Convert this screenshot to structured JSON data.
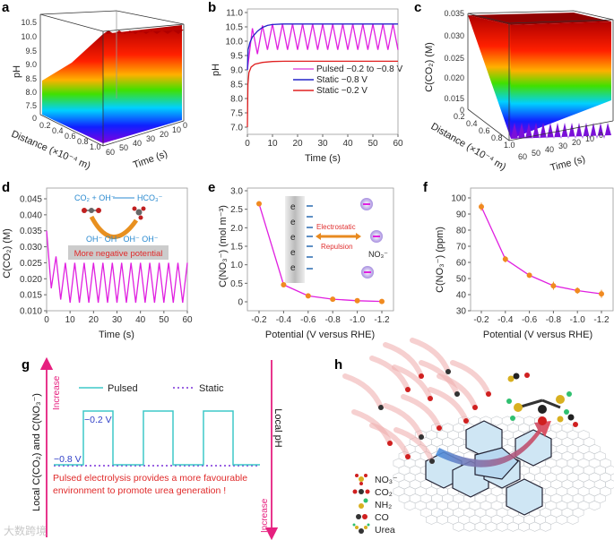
{
  "panel_labels": {
    "a": "a",
    "b": "b",
    "c": "c",
    "d": "d",
    "e": "e",
    "f": "f",
    "g": "g",
    "h": "h"
  },
  "colors": {
    "pulsed": "#e020e0",
    "static_08": "#2424c8",
    "static_02": "#e02020",
    "marker": "#f08a20",
    "pink": "#e6207f",
    "cyan": "#3ec8c8",
    "violet": "#7a30d8",
    "red_text": "#e02a2a",
    "blue_text": "#3040c8"
  },
  "chart_data": [
    {
      "id": "a",
      "type": "surface3d",
      "zlabel": "pH",
      "xlabel": "Distance (×10⁻⁴ m)",
      "ylabel": "Time (s)",
      "z_ticks": [
        "10.5",
        "10.0",
        "9.5",
        "9.0",
        "8.5",
        "8.0",
        "7.5",
        "0"
      ],
      "x_ticks": [
        "0.2",
        "0.4",
        "0.6",
        "0.8",
        "1.0"
      ],
      "y_ticks": [
        "60",
        "50",
        "40",
        "30",
        "20",
        "10",
        "0"
      ],
      "zlim": [
        7.0,
        10.7
      ]
    },
    {
      "id": "b",
      "type": "line",
      "xlabel": "Time (s)",
      "ylabel": "pH",
      "xlim": [
        0,
        60
      ],
      "ylim": [
        7.0,
        11.0
      ],
      "x_ticks": [
        0,
        10,
        20,
        30,
        40,
        50,
        60
      ],
      "y_ticks": [
        "7.0",
        "7.5",
        "8.0",
        "8.5",
        "9.0",
        "9.5",
        "10.0",
        "10.5",
        "11.0"
      ],
      "series": [
        {
          "name": "Pulsed −0.2 to −0.8 V",
          "color_key": "pulsed",
          "points": [
            [
              0,
              9.0
            ],
            [
              2,
              10.45
            ],
            [
              4,
              9.55
            ],
            [
              6,
              10.55
            ],
            [
              8,
              9.7
            ],
            [
              10,
              10.6
            ],
            [
              12,
              9.7
            ],
            [
              14,
              10.6
            ],
            [
              16,
              9.7
            ],
            [
              18,
              10.6
            ],
            [
              20,
              9.7
            ],
            [
              22,
              10.6
            ],
            [
              24,
              9.7
            ],
            [
              26,
              10.6
            ],
            [
              28,
              9.7
            ],
            [
              30,
              10.6
            ],
            [
              32,
              9.7
            ],
            [
              34,
              10.6
            ],
            [
              36,
              9.7
            ],
            [
              38,
              10.6
            ],
            [
              40,
              9.7
            ],
            [
              42,
              10.6
            ],
            [
              44,
              9.7
            ],
            [
              46,
              10.6
            ],
            [
              48,
              9.7
            ],
            [
              50,
              10.6
            ],
            [
              52,
              9.7
            ],
            [
              54,
              10.6
            ],
            [
              56,
              9.7
            ],
            [
              58,
              10.6
            ],
            [
              60,
              9.7
            ]
          ]
        },
        {
          "name": "Static −0.8 V",
          "color_key": "static_08",
          "points": [
            [
              0,
              9.0
            ],
            [
              0.3,
              9.7
            ],
            [
              1,
              9.95
            ],
            [
              2,
              10.15
            ],
            [
              4,
              10.35
            ],
            [
              6,
              10.48
            ],
            [
              8,
              10.55
            ],
            [
              10,
              10.58
            ],
            [
              14,
              10.6
            ],
            [
              60,
              10.6
            ]
          ]
        },
        {
          "name": "Static −0.2 V",
          "color_key": "static_02",
          "points": [
            [
              0,
              7.0
            ],
            [
              0.2,
              8.5
            ],
            [
              0.6,
              8.9
            ],
            [
              1.5,
              9.1
            ],
            [
              3,
              9.2
            ],
            [
              6,
              9.26
            ],
            [
              10,
              9.29
            ],
            [
              15,
              9.3
            ],
            [
              60,
              9.3
            ]
          ]
        }
      ],
      "legend": "center-right"
    },
    {
      "id": "c",
      "type": "surface3d",
      "zlabel": "C(CO₂) (M)",
      "xlabel": "Distance (×10⁻⁴ m)",
      "ylabel": "Time (s)",
      "z_ticks": [
        "0.035",
        "0.030",
        "0.025",
        "0.020",
        "0.015",
        "0"
      ],
      "x_ticks": [
        "0.2",
        "0.4",
        "0.6",
        "0.8",
        "1.0"
      ],
      "y_ticks": [
        "60",
        "50",
        "40",
        "30",
        "20",
        "10",
        "0"
      ],
      "zlim": [
        0.01,
        0.035
      ]
    },
    {
      "id": "d",
      "type": "line",
      "xlabel": "Time (s)",
      "ylabel": "C(CO₂) (M)",
      "xlim": [
        0,
        60
      ],
      "ylim": [
        0.01,
        0.045
      ],
      "x_ticks": [
        0,
        10,
        20,
        30,
        40,
        50,
        60
      ],
      "y_ticks": [
        "0.010",
        "0.015",
        "0.020",
        "0.025",
        "0.030",
        "0.035",
        "0.040",
        "0.045"
      ],
      "series": [
        {
          "name": "Pulsed",
          "color_key": "pulsed",
          "points": [
            [
              0,
              0.035
            ],
            [
              2,
              0.017
            ],
            [
              4,
              0.027
            ],
            [
              6,
              0.0135
            ],
            [
              8,
              0.025
            ],
            [
              10,
              0.0125
            ],
            [
              12,
              0.025
            ],
            [
              14,
              0.0125
            ],
            [
              16,
              0.025
            ],
            [
              18,
              0.0125
            ],
            [
              20,
              0.025
            ],
            [
              22,
              0.0125
            ],
            [
              24,
              0.025
            ],
            [
              26,
              0.0125
            ],
            [
              28,
              0.025
            ],
            [
              30,
              0.0125
            ],
            [
              32,
              0.025
            ],
            [
              34,
              0.0125
            ],
            [
              36,
              0.025
            ],
            [
              38,
              0.0125
            ],
            [
              40,
              0.025
            ],
            [
              42,
              0.0125
            ],
            [
              44,
              0.025
            ],
            [
              46,
              0.0125
            ],
            [
              48,
              0.025
            ],
            [
              50,
              0.0125
            ],
            [
              52,
              0.025
            ],
            [
              54,
              0.0125
            ],
            [
              56,
              0.025
            ],
            [
              58,
              0.0125
            ],
            [
              60,
              0.025
            ]
          ]
        }
      ],
      "inset": {
        "reaction_left": "CO₂ + OH⁻",
        "reaction_right": "HCO₃⁻",
        "ions": "OH⁻ OH⁻  OH⁻  OH⁻",
        "caption": "More negative potential"
      }
    },
    {
      "id": "e",
      "type": "line",
      "xlabel": "Potential (V versus RHE)",
      "ylabel": "C(NO₃⁻) (mol m⁻³)",
      "xlim": [
        -0.2,
        -1.2
      ],
      "ylim": [
        0,
        3.0
      ],
      "x_ticks": [
        "-0.2",
        "-0.4",
        "-0.6",
        "-0.8",
        "-1.0",
        "-1.2"
      ],
      "y_ticks": [
        "0",
        "0.5",
        "1.0",
        "1.5",
        "2.0",
        "2.5",
        "3.0"
      ],
      "series": [
        {
          "name": "C NO3",
          "color_key": "pulsed",
          "points": [
            [
              -0.2,
              2.65
            ],
            [
              -0.4,
              0.46
            ],
            [
              -0.6,
              0.16
            ],
            [
              -0.8,
              0.07
            ],
            [
              -1.0,
              0.03
            ],
            [
              -1.2,
              0.01
            ]
          ]
        }
      ],
      "inset": {
        "electron": "e",
        "label1": "Electrostatic",
        "label2": "Repulsion",
        "ion": "NO₃⁻"
      }
    },
    {
      "id": "f",
      "type": "line",
      "xlabel": "Potential (V versus RHE)",
      "ylabel": "C(NO₃⁻) (ppm)",
      "xlim": [
        -0.2,
        -1.2
      ],
      "ylim": [
        30,
        100
      ],
      "x_ticks": [
        "-0.2",
        "-0.4",
        "-0.6",
        "-0.8",
        "-1.0",
        "-1.2"
      ],
      "y_ticks": [
        "30",
        "40",
        "50",
        "60",
        "70",
        "80",
        "90",
        "100"
      ],
      "series": [
        {
          "name": "C NO3 ppm",
          "color_key": "pulsed",
          "points": [
            [
              -0.2,
              94.5
            ],
            [
              -0.4,
              62
            ],
            [
              -0.6,
              52
            ],
            [
              -0.8,
              45.5
            ],
            [
              -1.0,
              42.5
            ],
            [
              -1.2,
              40.5
            ]
          ],
          "errors": [
            2.5,
            2,
            1.5,
            2.5,
            2,
            2.5
          ]
        }
      ]
    },
    {
      "id": "g",
      "type": "line",
      "left_label": "Local C(CO₂) and C(NO₃⁻)",
      "right_label": "Local pH",
      "increase_left": "Increase",
      "increase_right": "Increase",
      "legend_pulsed": "Pulsed",
      "legend_static": "Static",
      "high_label": "−0.2 V",
      "low_label": "−0.8 V",
      "pulse_states": [
        0,
        1,
        0,
        1,
        0,
        1,
        0
      ],
      "note_line1": "Pulsed electrolysis provides a more favourable",
      "note_line2": "environment to promote urea generation !"
    }
  ],
  "panel_h": {
    "legend": [
      {
        "label": "NO₃⁻"
      },
      {
        "label": "CO₂"
      },
      {
        "label": "NH₂"
      },
      {
        "label": "CO"
      },
      {
        "label": "Urea"
      }
    ]
  },
  "watermark": "大数跨境"
}
